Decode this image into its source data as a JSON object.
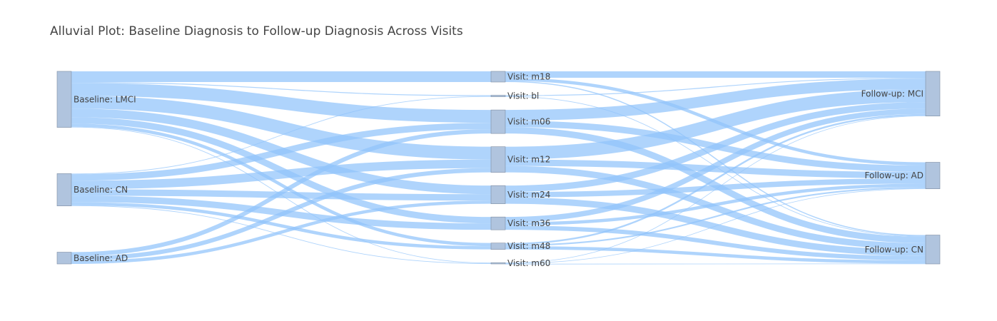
{
  "chart_data": {
    "type": "sankey",
    "title": "Alluvial Plot: Baseline Diagnosis to Follow-up Diagnosis Across Visits",
    "colors": {
      "node_fill": "#b0c4de",
      "node_stroke": "#7f8ea3",
      "link": "#90c4fb",
      "text": "#444444",
      "background": "#ffffff"
    },
    "columns": [
      [
        {
          "id": "b_lmci",
          "label": "Baseline: LMCI"
        },
        {
          "id": "b_cn",
          "label": "Baseline: CN"
        },
        {
          "id": "b_ad",
          "label": "Baseline: AD"
        }
      ],
      [
        {
          "id": "v_m18",
          "label": "Visit: m18"
        },
        {
          "id": "v_bl",
          "label": "Visit: bl"
        },
        {
          "id": "v_m06",
          "label": "Visit: m06"
        },
        {
          "id": "v_m12",
          "label": "Visit: m12"
        },
        {
          "id": "v_m24",
          "label": "Visit: m24"
        },
        {
          "id": "v_m36",
          "label": "Visit: m36"
        },
        {
          "id": "v_m48",
          "label": "Visit: m48"
        },
        {
          "id": "v_m60",
          "label": "Visit: m60"
        }
      ],
      [
        {
          "id": "f_mci",
          "label": "Follow-up: MCI"
        },
        {
          "id": "f_ad",
          "label": "Follow-up: AD"
        },
        {
          "id": "f_cn",
          "label": "Follow-up: CN"
        }
      ]
    ],
    "links": [
      {
        "source": "b_lmci",
        "target": "v_m18",
        "value": 5
      },
      {
        "source": "b_lmci",
        "target": "v_bl",
        "value": 0.4
      },
      {
        "source": "b_lmci",
        "target": "v_m06",
        "value": 6
      },
      {
        "source": "b_lmci",
        "target": "v_m12",
        "value": 6
      },
      {
        "source": "b_lmci",
        "target": "v_m24",
        "value": 4
      },
      {
        "source": "b_lmci",
        "target": "v_m36",
        "value": 3
      },
      {
        "source": "b_lmci",
        "target": "v_m48",
        "value": 1.5
      },
      {
        "source": "b_lmci",
        "target": "v_m60",
        "value": 0.3
      },
      {
        "source": "b_cn",
        "target": "v_bl",
        "value": 0.3
      },
      {
        "source": "b_cn",
        "target": "v_m06",
        "value": 3
      },
      {
        "source": "b_cn",
        "target": "v_m12",
        "value": 4
      },
      {
        "source": "b_cn",
        "target": "v_m24",
        "value": 3
      },
      {
        "source": "b_cn",
        "target": "v_m36",
        "value": 3
      },
      {
        "source": "b_cn",
        "target": "v_m48",
        "value": 1.5
      },
      {
        "source": "b_cn",
        "target": "v_m60",
        "value": 0.3
      },
      {
        "source": "b_ad",
        "target": "v_m06",
        "value": 2
      },
      {
        "source": "b_ad",
        "target": "v_m12",
        "value": 2
      },
      {
        "source": "b_ad",
        "target": "v_m24",
        "value": 1.5
      },
      {
        "source": "v_m18",
        "target": "f_mci",
        "value": 3
      },
      {
        "source": "v_m18",
        "target": "f_ad",
        "value": 1.5
      },
      {
        "source": "v_m18",
        "target": "f_cn",
        "value": 0.5
      },
      {
        "source": "v_bl",
        "target": "f_mci",
        "value": 0.4
      },
      {
        "source": "v_bl",
        "target": "f_cn",
        "value": 0.3
      },
      {
        "source": "v_m06",
        "target": "f_mci",
        "value": 5
      },
      {
        "source": "v_m06",
        "target": "f_ad",
        "value": 3
      },
      {
        "source": "v_m06",
        "target": "f_cn",
        "value": 3
      },
      {
        "source": "v_m12",
        "target": "f_mci",
        "value": 6
      },
      {
        "source": "v_m12",
        "target": "f_ad",
        "value": 3
      },
      {
        "source": "v_m12",
        "target": "f_cn",
        "value": 3
      },
      {
        "source": "v_m24",
        "target": "f_mci",
        "value": 3
      },
      {
        "source": "v_m24",
        "target": "f_ad",
        "value": 2.5
      },
      {
        "source": "v_m24",
        "target": "f_cn",
        "value": 3
      },
      {
        "source": "v_m36",
        "target": "f_mci",
        "value": 2.5
      },
      {
        "source": "v_m36",
        "target": "f_ad",
        "value": 1.5
      },
      {
        "source": "v_m36",
        "target": "f_cn",
        "value": 2
      },
      {
        "source": "v_m48",
        "target": "f_mci",
        "value": 0.8
      },
      {
        "source": "v_m48",
        "target": "f_ad",
        "value": 0.7
      },
      {
        "source": "v_m48",
        "target": "f_cn",
        "value": 1.5
      },
      {
        "source": "v_m60",
        "target": "f_mci",
        "value": 0.2
      },
      {
        "source": "v_m60",
        "target": "f_ad",
        "value": 0.2
      },
      {
        "source": "v_m60",
        "target": "f_cn",
        "value": 0.2
      }
    ]
  }
}
